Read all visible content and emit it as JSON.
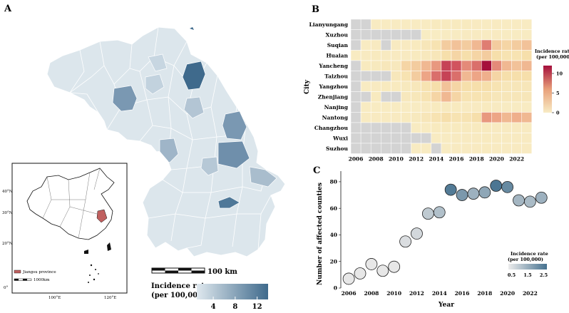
{
  "panels": {
    "a": "A",
    "b": "B",
    "c": "C"
  },
  "map": {
    "scale_bar_label": "100 km",
    "legend_title_1": "Incidence rate",
    "legend_title_2": "(per 100,000)",
    "legend_ticks": [
      "4",
      "8",
      "12"
    ],
    "legend_range": [
      1,
      14
    ],
    "colors": {
      "low": "#d7e2ea",
      "high": "#3f6a8c"
    }
  },
  "inset": {
    "lat_labels": [
      "40°N",
      "30°N",
      "20°N",
      "0°"
    ],
    "lon_labels": [
      "100°E",
      "120°E"
    ],
    "legend_province": "Jiangsu province",
    "legend_scale": "1000km",
    "highlight_color": "#c0605f"
  },
  "chart_data": [
    {
      "type": "heatmap",
      "ylabel": "City",
      "cities": [
        "Lianyungang",
        "Xuzhou",
        "Suqian",
        "Huaian",
        "Yancheng",
        "Taizhou",
        "Yangzhou",
        "Zhenjiang",
        "Nanjing",
        "Nantong",
        "Changzhou",
        "Wuxi",
        "Suzhou"
      ],
      "years": [
        2006,
        2007,
        2008,
        2009,
        2010,
        2011,
        2012,
        2013,
        2014,
        2015,
        2016,
        2017,
        2018,
        2019,
        2020,
        2021,
        2022,
        2023
      ],
      "x_tick_labels": [
        "2006",
        "2008",
        "2010",
        "2012",
        "2014",
        "2016",
        "2018",
        "2020",
        "2022"
      ],
      "legend_title": [
        "Incidence rate",
        "(per 100,000)"
      ],
      "legend_ticks": [
        0,
        5,
        10
      ],
      "value_range": [
        0,
        12
      ],
      "missing_color": "#d3d3d3",
      "values": [
        [
          null,
          null,
          0.3,
          0.3,
          0.3,
          0.3,
          0.3,
          0.3,
          0.5,
          0.5,
          0.5,
          0.5,
          0.4,
          0.3,
          0.4,
          0.3,
          0.3,
          0.3
        ],
        [
          null,
          null,
          null,
          null,
          null,
          null,
          null,
          0.2,
          0.2,
          0.3,
          0.3,
          0.4,
          0.4,
          0.3,
          0.4,
          0.3,
          0.3,
          0.3
        ],
        [
          null,
          0.3,
          0.4,
          null,
          0.4,
          0.4,
          0.5,
          1.0,
          1.5,
          3.0,
          3.5,
          3.0,
          4.0,
          6.5,
          3.0,
          2.5,
          3.0,
          3.5
        ],
        [
          0.3,
          0.4,
          0.5,
          0.4,
          0.4,
          0.4,
          0.5,
          0.7,
          1.0,
          2.0,
          2.5,
          2.0,
          2.5,
          3.0,
          2.0,
          1.5,
          1.5,
          2.0
        ],
        [
          null,
          0.5,
          0.6,
          0.8,
          0.7,
          2.5,
          3.0,
          4.0,
          5.5,
          9.0,
          8.0,
          6.0,
          7.0,
          12.0,
          6.0,
          4.0,
          3.5,
          4.0
        ],
        [
          null,
          null,
          null,
          null,
          0.8,
          1.5,
          3.0,
          5.0,
          7.0,
          9.0,
          7.0,
          4.0,
          5.0,
          4.5,
          2.5,
          2.0,
          2.0,
          2.0
        ],
        [
          null,
          0.3,
          0.4,
          0.5,
          0.5,
          0.6,
          0.8,
          1.5,
          2.0,
          3.5,
          2.5,
          2.0,
          2.0,
          2.0,
          1.5,
          1.0,
          1.0,
          1.0
        ],
        [
          null,
          null,
          0.5,
          null,
          null,
          0.7,
          0.9,
          1.5,
          2.5,
          4.0,
          2.5,
          1.5,
          1.5,
          1.5,
          1.0,
          1.0,
          1.0,
          1.0
        ],
        [
          null,
          0.3,
          0.3,
          0.3,
          0.3,
          0.3,
          0.3,
          0.4,
          0.5,
          0.6,
          0.5,
          0.4,
          0.4,
          0.5,
          0.4,
          0.3,
          0.3,
          0.3
        ],
        [
          null,
          0.4,
          0.4,
          0.4,
          0.4,
          0.5,
          0.6,
          1.0,
          1.5,
          2.0,
          1.5,
          1.5,
          2.0,
          5.5,
          5.0,
          4.0,
          4.5,
          4.0
        ],
        [
          null,
          null,
          null,
          null,
          null,
          null,
          0.3,
          0.3,
          0.5,
          0.5,
          0.5,
          0.5,
          0.5,
          0.5,
          0.4,
          0.4,
          0.4,
          0.4
        ],
        [
          null,
          null,
          null,
          null,
          null,
          null,
          null,
          null,
          0.3,
          0.3,
          0.4,
          0.4,
          0.4,
          0.5,
          0.4,
          0.4,
          0.4,
          0.4
        ],
        [
          null,
          null,
          null,
          null,
          null,
          null,
          0.3,
          0.3,
          null,
          0.3,
          0.4,
          0.4,
          0.4,
          0.5,
          0.4,
          0.4,
          0.4,
          0.4
        ]
      ]
    },
    {
      "type": "scatter",
      "xlabel": "Year",
      "ylabel": "Number of affected counties",
      "x": [
        2006,
        2007,
        2008,
        2009,
        2010,
        2011,
        2012,
        2013,
        2014,
        2015,
        2016,
        2017,
        2018,
        2019,
        2020,
        2021,
        2022,
        2023
      ],
      "y": [
        7,
        11,
        18,
        13,
        16,
        35,
        41,
        56,
        57,
        74,
        70,
        71,
        72,
        77,
        76,
        66,
        65,
        68
      ],
      "rate": [
        0.2,
        0.2,
        0.3,
        0.2,
        0.3,
        0.5,
        0.6,
        0.9,
        1.1,
        2.5,
        1.9,
        1.4,
        1.6,
        2.6,
        2.2,
        1.3,
        1.2,
        1.4
      ],
      "x_ticks": [
        2006,
        2008,
        2010,
        2012,
        2014,
        2016,
        2018,
        2020,
        2022
      ],
      "y_ticks": [
        0,
        20,
        40,
        60,
        80
      ],
      "xlim": [
        2005.3,
        2023.8
      ],
      "ylim": [
        0,
        88
      ],
      "legend_title": [
        "Incidence rate",
        "(per 100,000)"
      ],
      "legend_ticks": [
        "0.5",
        "1.5",
        "2.5"
      ],
      "legend_range": [
        0.3,
        2.7
      ],
      "colors": {
        "low": "#e7e7e7",
        "high": "#45718f"
      }
    }
  ]
}
